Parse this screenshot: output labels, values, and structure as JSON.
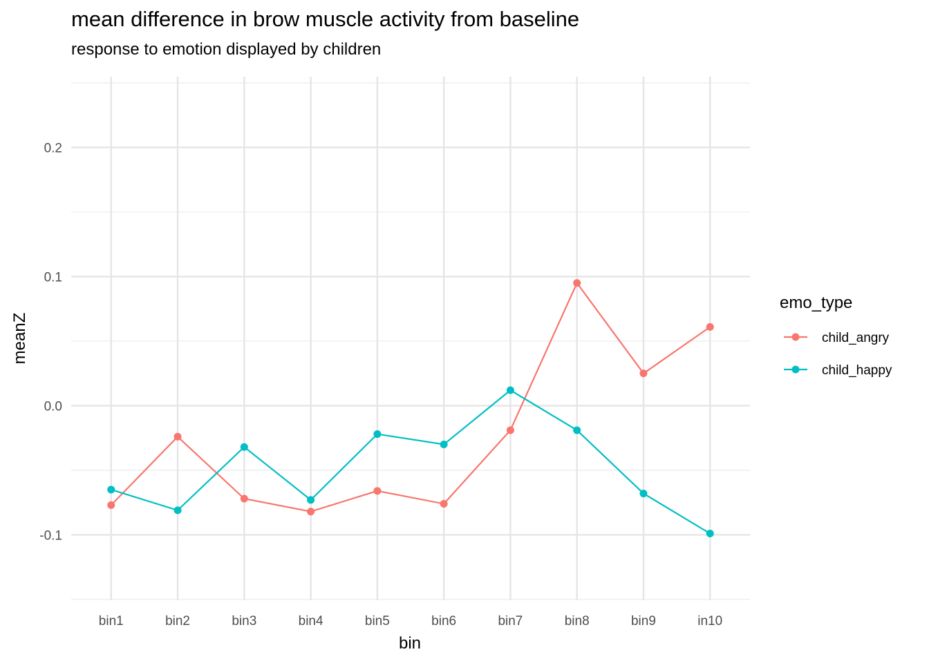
{
  "chart_data": {
    "type": "line",
    "title": "mean difference in brow muscle activity from baseline",
    "subtitle": "response to emotion displayed by children",
    "xlabel": "bin",
    "ylabel": "meanZ",
    "categories": [
      "bin1",
      "bin2",
      "bin3",
      "bin4",
      "bin5",
      "bin6",
      "bin7",
      "bin8",
      "bin9",
      "in10"
    ],
    "ylim": [
      -0.1506,
      0.2548
    ],
    "y_ticks": [
      -0.1,
      0.0,
      0.1,
      0.2
    ],
    "y_tick_labels": [
      "-0.1",
      "0.0",
      "0.1",
      "0.2"
    ],
    "grid": true,
    "legend": {
      "title": "emo_type",
      "placement": "right"
    },
    "series": [
      {
        "name": "child_angry",
        "color": "#F8766D",
        "values": [
          -0.077,
          -0.024,
          -0.072,
          -0.082,
          -0.066,
          -0.076,
          -0.019,
          0.095,
          0.025,
          0.061
        ]
      },
      {
        "name": "child_happy",
        "color": "#00BFC4",
        "values": [
          -0.065,
          -0.081,
          -0.032,
          -0.073,
          -0.022,
          -0.03,
          0.012,
          -0.019,
          -0.068,
          -0.099
        ]
      }
    ]
  }
}
